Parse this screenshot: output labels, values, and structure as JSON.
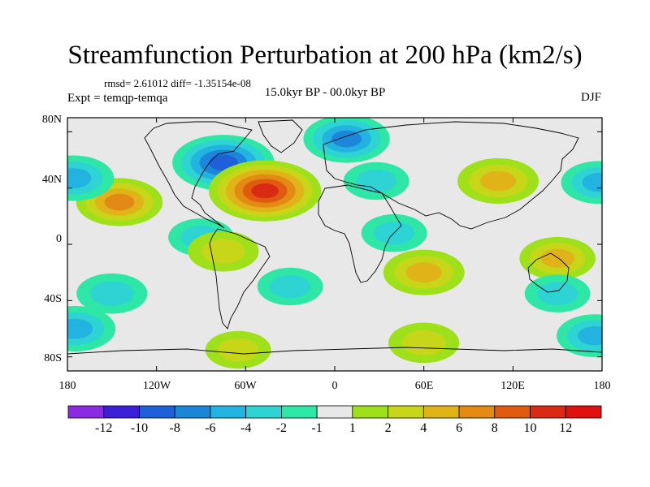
{
  "title": "Streamfunction Perturbation at 200 hPa (km2/s)",
  "stats_text": "rmsd= 2.61012 diff= -1.35154e-08",
  "expt_text": "Expt = temqp-temqa",
  "period_text": "15.0kyr BP - 00.0kyr BP",
  "season": "DJF",
  "lat_labels": [
    "80N",
    "40N",
    "0",
    "40S",
    "80S"
  ],
  "lon_labels": [
    "180",
    "120W",
    "60W",
    "0",
    "60E",
    "120E",
    "180"
  ],
  "colorbar": {
    "labels": [
      "-12",
      "-10",
      "-8",
      "-6",
      "-4",
      "-2",
      "-1",
      "1",
      "2",
      "4",
      "6",
      "8",
      "10",
      "12"
    ],
    "colors": [
      "#8a2be2",
      "#3b1fd4",
      "#1f5fd8",
      "#1c86d8",
      "#22b3e0",
      "#2ed3d3",
      "#2ee6a6",
      "#e8e8e8",
      "#9ee01a",
      "#c8d61a",
      "#e0b418",
      "#e28a14",
      "#e05a10",
      "#d82a14",
      "#e01010"
    ]
  },
  "chart_data": {
    "type": "filled-contour map",
    "variable": "200 hPa streamfunction perturbation",
    "units": "km2/s",
    "lon_range": [
      -180,
      180
    ],
    "lat_range": [
      -90,
      90
    ],
    "levels": [
      -12,
      -10,
      -8,
      -6,
      -4,
      -2,
      -1,
      1,
      2,
      4,
      6,
      8,
      10,
      12
    ],
    "features": [
      {
        "lon": -75,
        "lat": 58,
        "value": -9
      },
      {
        "lon": -47,
        "lat": 38,
        "value": 11
      },
      {
        "lon": -145,
        "lat": 30,
        "value": 6
      },
      {
        "lon": -176,
        "lat": 47,
        "value": -5
      },
      {
        "lon": 178,
        "lat": 44,
        "value": -4
      },
      {
        "lon": 8,
        "lat": 75,
        "value": -6
      },
      {
        "lon": 28,
        "lat": 45,
        "value": -2
      },
      {
        "lon": 110,
        "lat": 45,
        "value": 5
      },
      {
        "lon": -90,
        "lat": 5,
        "value": -2
      },
      {
        "lon": -75,
        "lat": -5,
        "value": 3
      },
      {
        "lon": 40,
        "lat": 8,
        "value": -2
      },
      {
        "lon": 60,
        "lat": -20,
        "value": 5
      },
      {
        "lon": 150,
        "lat": -10,
        "value": 4
      },
      {
        "lon": 150,
        "lat": -35,
        "value": -2
      },
      {
        "lon": -150,
        "lat": -35,
        "value": -3
      },
      {
        "lon": -30,
        "lat": -30,
        "value": -2
      },
      {
        "lon": -175,
        "lat": -60,
        "value": -5
      },
      {
        "lon": 175,
        "lat": -65,
        "value": -4
      },
      {
        "lon": 60,
        "lat": -70,
        "value": 3
      },
      {
        "lon": -65,
        "lat": -75,
        "value": 2
      }
    ]
  }
}
